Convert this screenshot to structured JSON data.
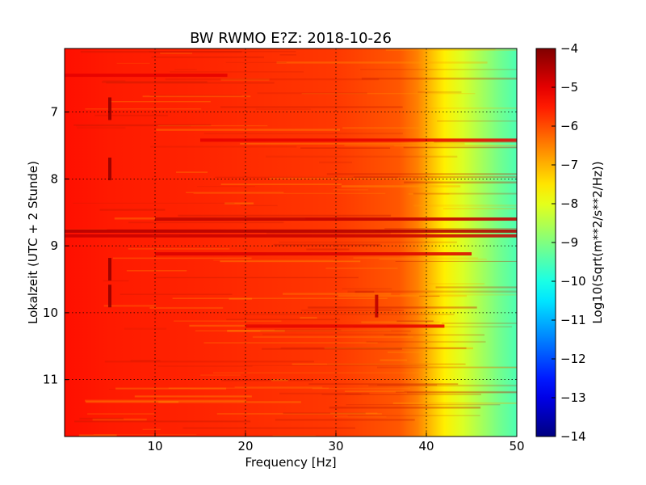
{
  "chart_data": {
    "type": "heatmap",
    "title": "BW RWMO E?Z: 2018-10-26",
    "xlabel": "Frequency [Hz]",
    "ylabel": "Lokalzeit (UTC + 2 Stunde)",
    "xlim": [
      0,
      50
    ],
    "ylim": [
      6.05,
      11.85
    ],
    "y_inverted": true,
    "x_ticks": [
      10,
      20,
      30,
      40,
      50
    ],
    "y_ticks": [
      7,
      8,
      9,
      10,
      11
    ],
    "grid": true,
    "colormap": "jet",
    "colorbar": {
      "label": "Log10(Sqrt(m**2/s**2/Hz))",
      "range": [
        -14,
        -4
      ],
      "ticks": [
        -4,
        -5,
        -6,
        -7,
        -8,
        -9,
        -10,
        -11,
        -12,
        -13,
        -14
      ]
    },
    "spectrum_profile": [
      {
        "freq": 0,
        "value": -5.4
      },
      {
        "freq": 5,
        "value": -5.5
      },
      {
        "freq": 15,
        "value": -5.6
      },
      {
        "freq": 30,
        "value": -5.8
      },
      {
        "freq": 37,
        "value": -6.1
      },
      {
        "freq": 39,
        "value": -6.5
      },
      {
        "freq": 40.5,
        "value": -7.1
      },
      {
        "freq": 42,
        "value": -7.6
      },
      {
        "freq": 44,
        "value": -8.1
      },
      {
        "freq": 46,
        "value": -8.6
      },
      {
        "freq": 48,
        "value": -9.1
      },
      {
        "freq": 50,
        "value": -9.5
      }
    ],
    "features": [
      {
        "kind": "band",
        "time": 8.6,
        "freq_from": 10,
        "freq_to": 50,
        "value": -4.6
      },
      {
        "kind": "band",
        "time": 8.78,
        "freq_from": 0,
        "freq_to": 50,
        "value": -4.5
      },
      {
        "kind": "band",
        "time": 8.85,
        "freq_from": 0,
        "freq_to": 50,
        "value": -4.7
      },
      {
        "kind": "band",
        "time": 9.12,
        "freq_from": 10,
        "freq_to": 45,
        "value": -4.9
      },
      {
        "kind": "band",
        "time": 7.42,
        "freq_from": 15,
        "freq_to": 50,
        "value": -5.0
      },
      {
        "kind": "band",
        "time": 10.2,
        "freq_from": 20,
        "freq_to": 42,
        "value": -5.0
      },
      {
        "kind": "band",
        "time": 6.45,
        "freq_from": 0,
        "freq_to": 18,
        "value": -5.0
      },
      {
        "kind": "spot",
        "time": 6.95,
        "freq": 5,
        "value": -4.2
      },
      {
        "kind": "spot",
        "time": 7.85,
        "freq": 5,
        "value": -4.2
      },
      {
        "kind": "spot",
        "time": 9.35,
        "freq": 5,
        "value": -4.2
      },
      {
        "kind": "spot",
        "time": 9.75,
        "freq": 5,
        "value": -4.2
      },
      {
        "kind": "spot",
        "time": 9.9,
        "freq": 34.5,
        "value": -4.6
      }
    ]
  }
}
